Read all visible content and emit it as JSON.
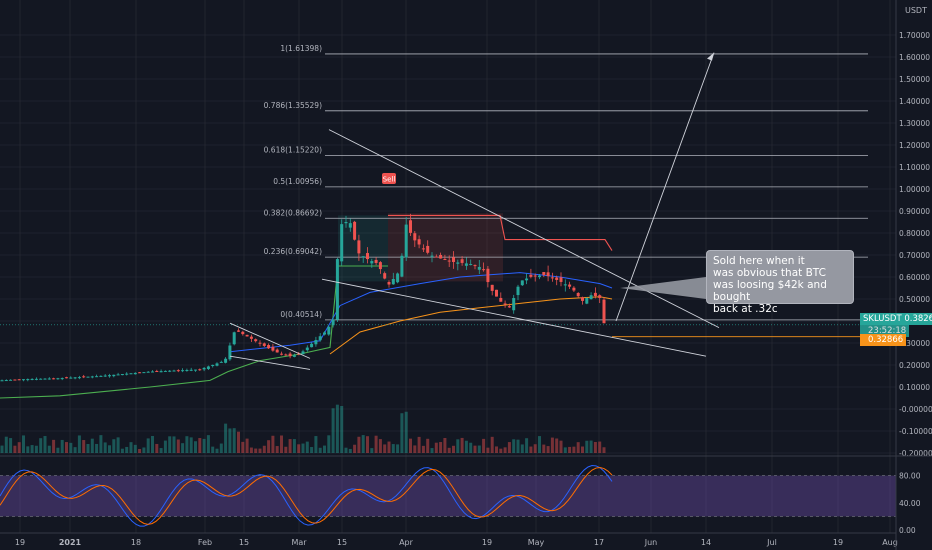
{
  "header": {
    "currency": "USDT"
  },
  "colors": {
    "bg": "#131722",
    "grid": "#2a2e39",
    "text": "#b2b5be",
    "up": "#26a69a",
    "down": "#ef5350",
    "fib": "#b2b5be",
    "ma_blue": "#2962ff",
    "ma_orange": "#f7931a",
    "support": "#4caf50",
    "resistance": "#ef5350",
    "stoch_k": "#2962ff",
    "stoch_d": "#ff6d00",
    "stoch_band": "#7e57c2"
  },
  "chart_data": {
    "type": "candlestick",
    "symbol": "SKLUSDT",
    "price_axis": {
      "ylim": [
        -0.2,
        1.8
      ],
      "ticks": [
        "1.70000",
        "1.60000",
        "1.50000",
        "1.40000",
        "1.30000",
        "1.20000",
        "1.10000",
        "1.00000",
        "0.90000",
        "0.80000",
        "0.70000",
        "0.60000",
        "0.50000",
        "0.40000",
        "0.30000",
        "0.20000",
        "0.10000",
        "-0.00000",
        "-0.10000",
        "-0.20000"
      ]
    },
    "time_axis": {
      "labels": [
        "19",
        "2021",
        "18",
        "Feb",
        "15",
        "Mar",
        "15",
        "Apr",
        "19",
        "May",
        "17",
        "Jun",
        "14",
        "Jul",
        "19",
        "Aug"
      ]
    },
    "fib_levels": [
      {
        "label": "1(1.61398)",
        "value": 1.61398
      },
      {
        "label": "0.786(1.35529)",
        "value": 1.35529
      },
      {
        "label": "0.618(1.15220)",
        "value": 1.1522
      },
      {
        "label": "0.5(1.00956)",
        "value": 1.00956
      },
      {
        "label": "0.382(0.86692)",
        "value": 0.86692
      },
      {
        "label": "0.236(0.69042)",
        "value": 0.69042
      },
      {
        "label": "0(0.40514)",
        "value": 0.40514
      }
    ],
    "last_price": {
      "label": "SKLUSDT",
      "value": "0.38269",
      "timer": "23:52:18"
    },
    "level_price": {
      "value": "0.32866"
    },
    "signal": {
      "label": "Sell"
    },
    "annotation": "Sold here when it\nwas obvious that BTC\nwas loosing $42k and bought\nback at .32c",
    "stoch": {
      "ticks": [
        "80.00",
        "40.00",
        "0.00"
      ],
      "upper": 80,
      "lower": 20
    },
    "grid": true
  }
}
